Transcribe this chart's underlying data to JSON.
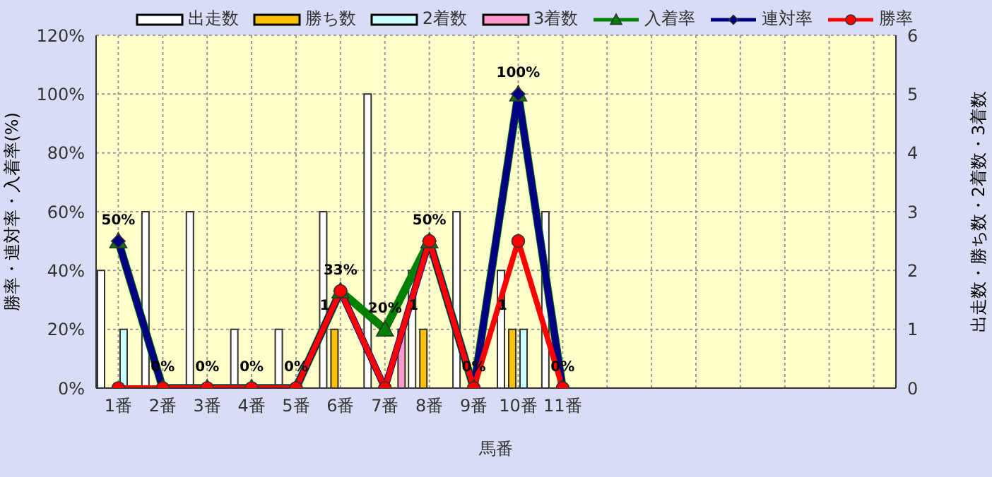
{
  "chart_data": {
    "type": "bar",
    "xlabel": "馬番",
    "ylabel": "勝率・連対率・入着率(%)",
    "y2label": "出走数・勝ち数・2着数・3着数",
    "categories": [
      "1番",
      "2番",
      "3番",
      "4番",
      "5番",
      "6番",
      "7番",
      "8番",
      "9番",
      "10番",
      "11番",
      null,
      null,
      null,
      null,
      null,
      null,
      null
    ],
    "series": [
      {
        "name": "出走数",
        "axis": "y2",
        "color": "#ffffff",
        "values": [
          2,
          3,
          3,
          1,
          1,
          3,
          5,
          2,
          3,
          2,
          3,
          null,
          null,
          null,
          null,
          null,
          null,
          null
        ]
      },
      {
        "name": "勝ち数",
        "axis": "y2",
        "color": "#ffc000",
        "values": [
          0,
          0,
          0,
          0,
          0,
          1,
          0,
          1,
          0,
          1,
          0,
          null,
          null,
          null,
          null,
          null,
          null,
          null
        ],
        "value_labels": [
          null,
          null,
          null,
          null,
          null,
          "1",
          null,
          "1",
          null,
          "1",
          null,
          null,
          null,
          null,
          null,
          null,
          null,
          null
        ]
      },
      {
        "name": "2着数",
        "axis": "y2",
        "color": "#ccffff",
        "values": [
          1,
          0,
          0,
          0,
          0,
          0,
          0,
          0,
          0,
          1,
          0,
          null,
          null,
          null,
          null,
          null,
          null,
          null
        ]
      },
      {
        "name": "3着数",
        "axis": "y2",
        "color": "#ff99cc",
        "values": [
          0,
          0,
          0,
          0,
          0,
          0,
          1,
          0,
          0,
          0,
          0,
          null,
          null,
          null,
          null,
          null,
          null,
          null
        ]
      },
      {
        "name": "入着率",
        "type": "line",
        "marker": "triangle",
        "color": "#008000",
        "values": [
          50,
          0,
          0,
          0,
          0,
          33,
          20,
          50,
          0,
          100,
          0,
          null,
          null,
          null,
          null,
          null,
          null,
          null
        ],
        "value_labels": [
          "50%",
          "0%",
          "0%",
          "0%",
          "0%",
          "33%",
          "20%",
          "50%",
          "0%",
          "100%",
          "0%",
          null,
          null,
          null,
          null,
          null,
          null,
          null
        ]
      },
      {
        "name": "連対率",
        "type": "line",
        "marker": "diamond",
        "color": "#000080",
        "values": [
          50,
          0,
          0,
          0,
          0,
          33,
          0,
          50,
          0,
          100,
          0,
          null,
          null,
          null,
          null,
          null,
          null,
          null
        ]
      },
      {
        "name": "勝率",
        "type": "line",
        "marker": "circle",
        "color": "#ff0000",
        "values": [
          0,
          0,
          0,
          0,
          0,
          33,
          0,
          50,
          0,
          50,
          0,
          null,
          null,
          null,
          null,
          null,
          null,
          null
        ]
      }
    ],
    "ylim": [
      0,
      120
    ],
    "yticks": [
      {
        "value": 0,
        "label": "0%"
      },
      {
        "value": 20,
        "label": "20%"
      },
      {
        "value": 40,
        "label": "40%"
      },
      {
        "value": 60,
        "label": "60%"
      },
      {
        "value": 80,
        "label": "80%"
      },
      {
        "value": 100,
        "label": "100%"
      },
      {
        "value": 120,
        "label": "120%"
      }
    ],
    "y2lim": [
      0,
      6
    ],
    "y2ticks": [
      0,
      1,
      2,
      3,
      4,
      5,
      6
    ],
    "grid": true,
    "legend": "top"
  }
}
